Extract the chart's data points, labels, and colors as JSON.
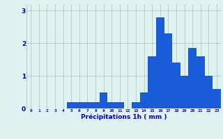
{
  "hours": [
    0,
    1,
    2,
    3,
    4,
    5,
    6,
    7,
    8,
    9,
    10,
    11,
    12,
    13,
    14,
    15,
    16,
    17,
    18,
    19,
    20,
    21,
    22,
    23
  ],
  "values": [
    0.0,
    0.0,
    0.0,
    0.0,
    0.0,
    0.2,
    0.2,
    0.2,
    0.2,
    0.5,
    0.2,
    0.2,
    0.0,
    0.2,
    0.5,
    1.6,
    2.8,
    2.3,
    1.4,
    1.0,
    1.85,
    1.6,
    1.0,
    0.6
  ],
  "bar_color": "#1a5cd8",
  "background_color": "#dff2f2",
  "grid_color": "#b0b8b8",
  "text_color": "#0000aa",
  "xlabel": "Précipitations 1h ( mm )",
  "yticks": [
    0,
    1,
    2,
    3
  ],
  "ylim": [
    0,
    3.2
  ],
  "xlim": [
    -0.5,
    23.5
  ],
  "figwidth": 3.2,
  "figheight": 2.0,
  "dpi": 100
}
